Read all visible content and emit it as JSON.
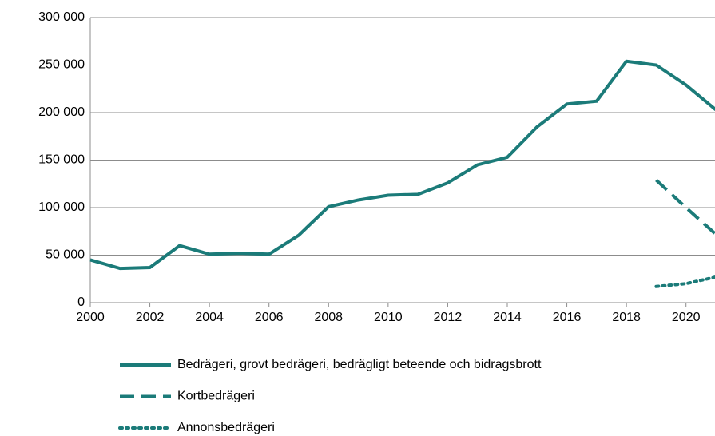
{
  "chart_data": {
    "type": "line",
    "x": [
      2000,
      2001,
      2002,
      2003,
      2004,
      2005,
      2006,
      2007,
      2008,
      2009,
      2010,
      2011,
      2012,
      2013,
      2014,
      2015,
      2016,
      2017,
      2018,
      2019,
      2020,
      2021
    ],
    "series": [
      {
        "name": "Bedrägeri, grovt bedrägeri, bedrägligt beteende och bidragsbrott",
        "color": "#1b7b79",
        "dash": "solid",
        "values": [
          45000,
          36000,
          37000,
          60000,
          51000,
          52000,
          51000,
          71000,
          101000,
          108000,
          113000,
          114000,
          126000,
          145000,
          153000,
          185000,
          209000,
          212000,
          254000,
          250000,
          229000,
          203000
        ]
      },
      {
        "name": "Kortbedrägeri",
        "color": "#1b7b79",
        "dash": "dashed",
        "values": [
          null,
          null,
          null,
          null,
          null,
          null,
          null,
          null,
          null,
          null,
          null,
          null,
          null,
          null,
          null,
          null,
          null,
          null,
          null,
          129000,
          100000,
          72000
        ]
      },
      {
        "name": "Annonsbedrägeri",
        "color": "#1b7b79",
        "dash": "dotted",
        "values": [
          null,
          null,
          null,
          null,
          null,
          null,
          null,
          null,
          null,
          null,
          null,
          null,
          null,
          null,
          null,
          null,
          null,
          null,
          null,
          17000,
          20000,
          27000
        ]
      }
    ],
    "xlim": [
      2000,
      2021
    ],
    "xticks": [
      2000,
      2002,
      2004,
      2006,
      2008,
      2010,
      2012,
      2014,
      2016,
      2018,
      2020
    ],
    "ylim": [
      0,
      300000
    ],
    "yticks": [
      0,
      {
        "value": 50000,
        "label": "50 000"
      },
      {
        "value": 100000,
        "label": "100 000"
      },
      {
        "value": 150000,
        "label": "150 000"
      },
      {
        "value": 200000,
        "label": "200 000"
      },
      {
        "value": 250000,
        "label": "250 000"
      },
      {
        "value": 300000,
        "label": "300 000"
      }
    ],
    "grid": true
  }
}
